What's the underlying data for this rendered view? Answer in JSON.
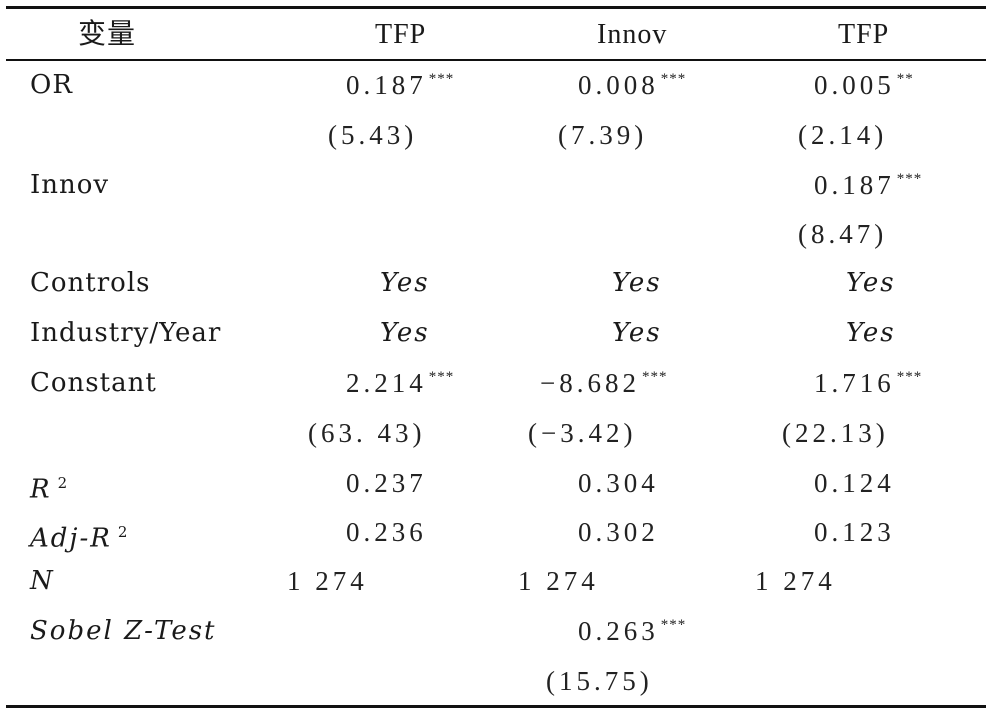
{
  "header": {
    "variable": "变量",
    "col1": "TFP",
    "col2": "Innov",
    "col3": "TFP"
  },
  "rows": {
    "or": {
      "label": "OR",
      "c1": "0.187",
      "c1_star": "***",
      "c1_t": "(5.43)",
      "c2": "0.008",
      "c2_star": "***",
      "c2_t": "(7.39)",
      "c3": "0.005",
      "c3_star": "**",
      "c3_t": "(2.14)"
    },
    "innov": {
      "label": "Innov",
      "c3": "0.187",
      "c3_star": "***",
      "c3_t": "(8.47)"
    },
    "controls": {
      "label": "Controls",
      "c1": "Yes",
      "c2": "Yes",
      "c3": "Yes"
    },
    "industry_year": {
      "label": "Industry/Year",
      "c1": "Yes",
      "c2": "Yes",
      "c3": "Yes"
    },
    "constant": {
      "label": "Constant",
      "c1": "2.214",
      "c1_star": "***",
      "c1_t": "(63. 43)",
      "c2": "−8.682",
      "c2_star": "***",
      "c2_t": "(−3.42)",
      "c3": "1.716",
      "c3_star": "***",
      "c3_t": "(22.13)"
    },
    "r2": {
      "label": "R",
      "sup": "2",
      "c1": "0.237",
      "c2": "0.304",
      "c3": "0.124"
    },
    "adj_r2": {
      "label": "Adj-R",
      "sup": "2",
      "c1": "0.236",
      "c2": "0.302",
      "c3": "0.123"
    },
    "n": {
      "label": "N",
      "c1": "1 274",
      "c2": "1 274",
      "c3": "1 274"
    },
    "sobel": {
      "label": "Sobel Z-Test",
      "c2": "0.263",
      "c2_star": "***",
      "c2_t": "(15.75)"
    }
  }
}
